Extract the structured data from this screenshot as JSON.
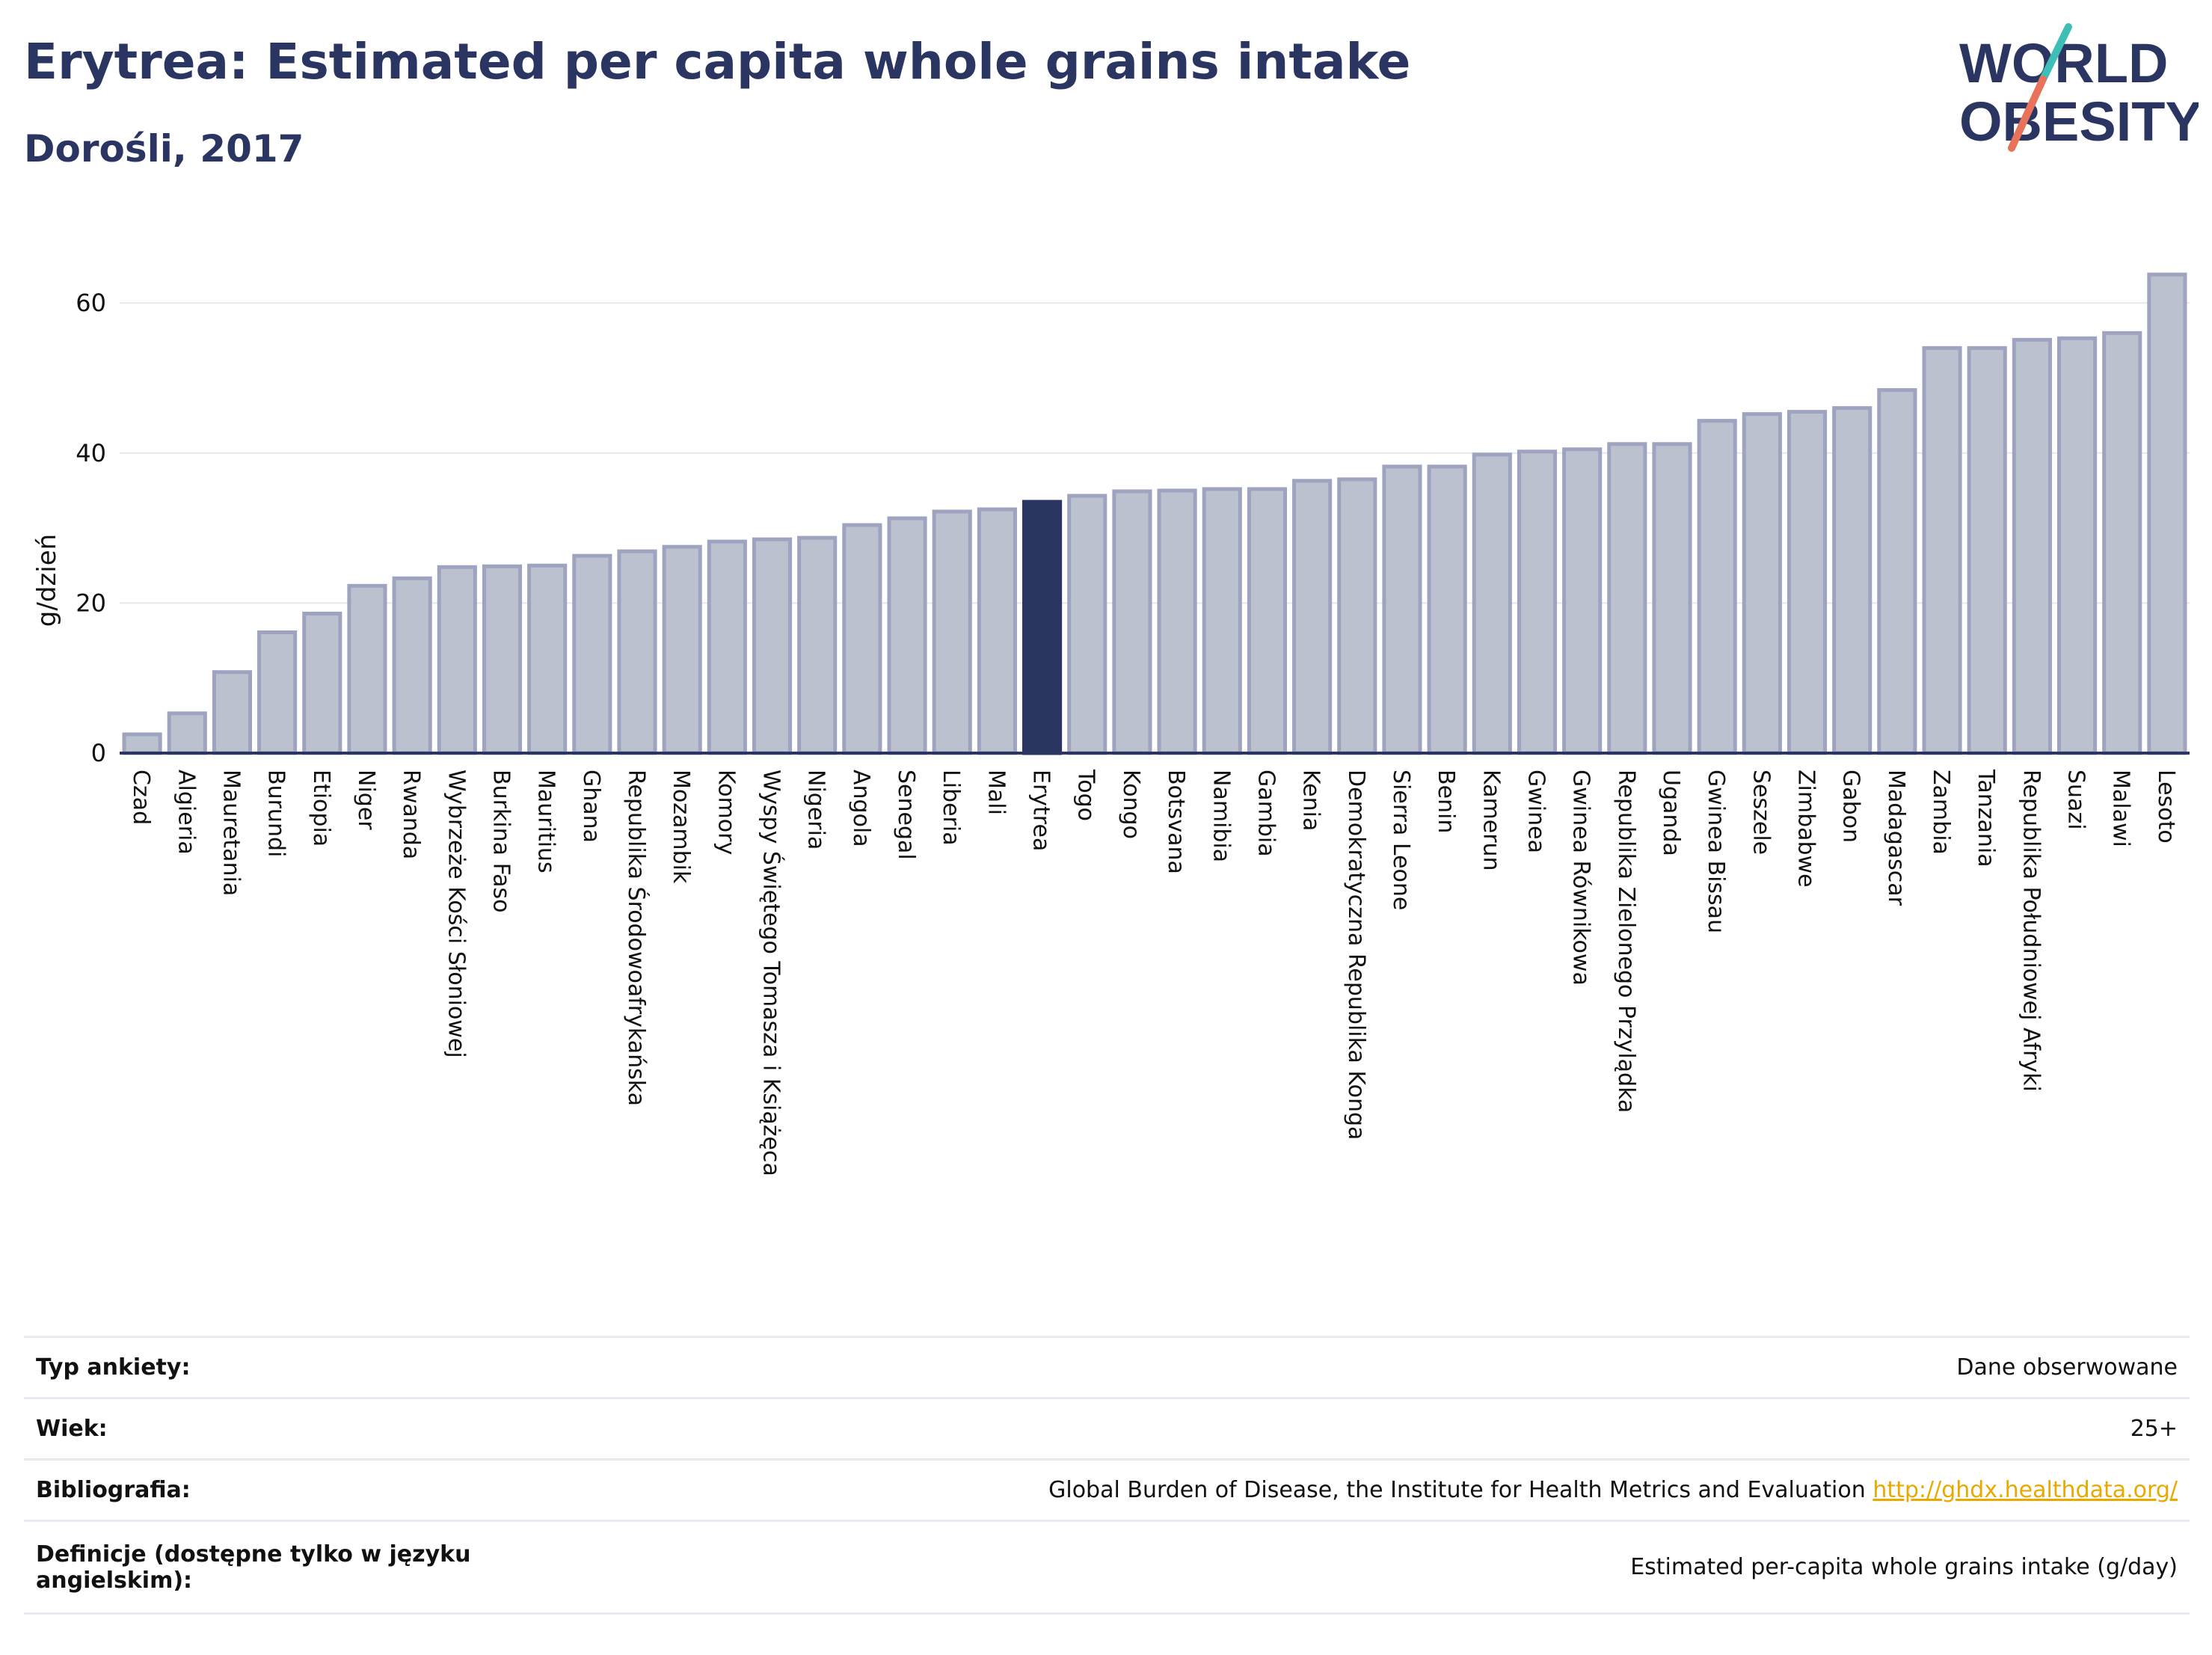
{
  "header": {
    "title": "Erytrea: Estimated per capita whole grains intake",
    "subtitle": "Dorośli, 2017"
  },
  "logo": {
    "line1": "WORLD",
    "line2": "OBESITY",
    "colors": {
      "text": "#2b3561",
      "teal": "#3dbfb8",
      "coral": "#e8735a"
    }
  },
  "chart_data": {
    "type": "bar",
    "ylabel": "g/dzień",
    "ylim": [
      0,
      66
    ],
    "yticks": [
      0,
      20,
      40,
      60
    ],
    "grid": true,
    "highlight": "Erytrea",
    "colors": {
      "bar": "#bcc1d0",
      "bar_edge": "#9ea4bf",
      "highlight": "#2b3561",
      "axis": "#2b3561",
      "grid": "#e6e8ef"
    },
    "categories": [
      "Czad",
      "Algieria",
      "Mauretania",
      "Burundi",
      "Etiopia",
      "Niger",
      "Rwanda",
      "Wybrzeże Kości Słoniowej",
      "Burkina Faso",
      "Mauritius",
      "Ghana",
      "Republika Środowoafrykańska",
      "Mozambik",
      "Komory",
      "Wyspy Świętego Tomasza i Książęca",
      "Nigeria",
      "Angola",
      "Senegal",
      "Liberia",
      "Mali",
      "Erytrea",
      "Togo",
      "Kongo",
      "Botsvana",
      "Namibia",
      "Gambia",
      "Kenia",
      "Demokratyczna Republika Konga",
      "Sierra Leone",
      "Benin",
      "Kamerun",
      "Gwinea",
      "Gwinea Równikowa",
      "Republika Zielonego Przylądka",
      "Uganda",
      "Gwinea Bissau",
      "Seszele",
      "Zimbabwe",
      "Gabon",
      "Madagascar",
      "Zambia",
      "Tanzania",
      "Republika Południowej Afryki",
      "Suazi",
      "Malawi",
      "Lesoto"
    ],
    "values": [
      2.5,
      5.3,
      10.8,
      16.1,
      18.6,
      22.3,
      23.3,
      24.8,
      24.9,
      25.0,
      26.3,
      26.9,
      27.5,
      28.2,
      28.5,
      28.7,
      30.4,
      31.3,
      32.2,
      32.5,
      33.5,
      34.3,
      34.9,
      35.0,
      35.2,
      35.2,
      36.3,
      36.5,
      38.2,
      38.2,
      39.8,
      40.2,
      40.5,
      41.2,
      41.2,
      44.3,
      45.2,
      45.5,
      46.0,
      48.4,
      54.0,
      54.0,
      55.1,
      55.3,
      56.0,
      63.8
    ]
  },
  "details": [
    {
      "label": "Typ ankiety:",
      "value": "Dane obserwowane"
    },
    {
      "label": "Wiek:",
      "value": "25+"
    },
    {
      "label": "Bibliografia:",
      "value": "Global Burden of Disease, the Institute for Health Metrics and Evaluation",
      "link": "http://ghdx.healthdata.org/"
    },
    {
      "label": "Definicje (dostępne tylko w języku angielskim):",
      "value": "Estimated per-capita whole grains intake (g/day)"
    }
  ]
}
